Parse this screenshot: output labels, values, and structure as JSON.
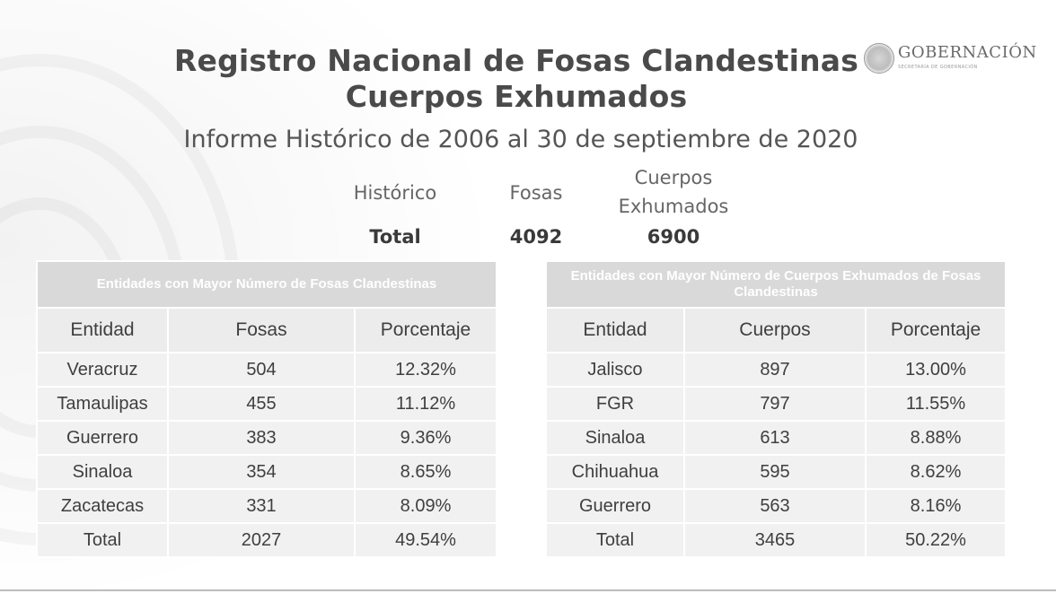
{
  "header": {
    "title_line1": "Registro Nacional de Fosas Clandestinas",
    "title_line2": "Cuerpos Exhumados",
    "subtitle": "Informe Histórico de 2006 al 30 de septiembre de 2020"
  },
  "logo": {
    "text": "GOBERNACIÓN",
    "subtext": "SECRETARÍA DE GOBERNACIÓN",
    "icon": "national-seal-icon"
  },
  "historico": {
    "label": "Histórico",
    "col_fosas": "Fosas",
    "col_cuerpos_line1": "Cuerpos",
    "col_cuerpos_line2": "Exhumados",
    "total_label": "Total",
    "total_fosas": "4092",
    "total_cuerpos": "6900"
  },
  "fosas_table": {
    "title": "Entidades con Mayor Número de Fosas Clandestinas",
    "headers": [
      "Entidad",
      "Fosas",
      "Porcentaje"
    ],
    "rows": [
      [
        "Veracruz",
        "504",
        "12.32%"
      ],
      [
        "Tamaulipas",
        "455",
        "11.12%"
      ],
      [
        "Guerrero",
        "383",
        "9.36%"
      ],
      [
        "Sinaloa",
        "354",
        "8.65%"
      ],
      [
        "Zacatecas",
        "331",
        "8.09%"
      ],
      [
        "Total",
        "2027",
        "49.54%"
      ]
    ]
  },
  "cuerpos_table": {
    "title": "Entidades con Mayor Número de Cuerpos Exhumados de Fosas Clandestinas",
    "headers": [
      "Entidad",
      "Cuerpos",
      "Porcentaje"
    ],
    "rows": [
      [
        "Jalisco",
        "897",
        "13.00%"
      ],
      [
        "FGR",
        "797",
        "11.55%"
      ],
      [
        "Sinaloa",
        "613",
        "8.88%"
      ],
      [
        "Chihuahua",
        "595",
        "8.62%"
      ],
      [
        "Guerrero",
        "563",
        "8.16%"
      ],
      [
        "Total",
        "3465",
        "50.22%"
      ]
    ]
  },
  "colors": {
    "header_fill": "#d9d9d9",
    "cell_fill": "#f1f1f1",
    "title_text": "#4a4a4a"
  }
}
